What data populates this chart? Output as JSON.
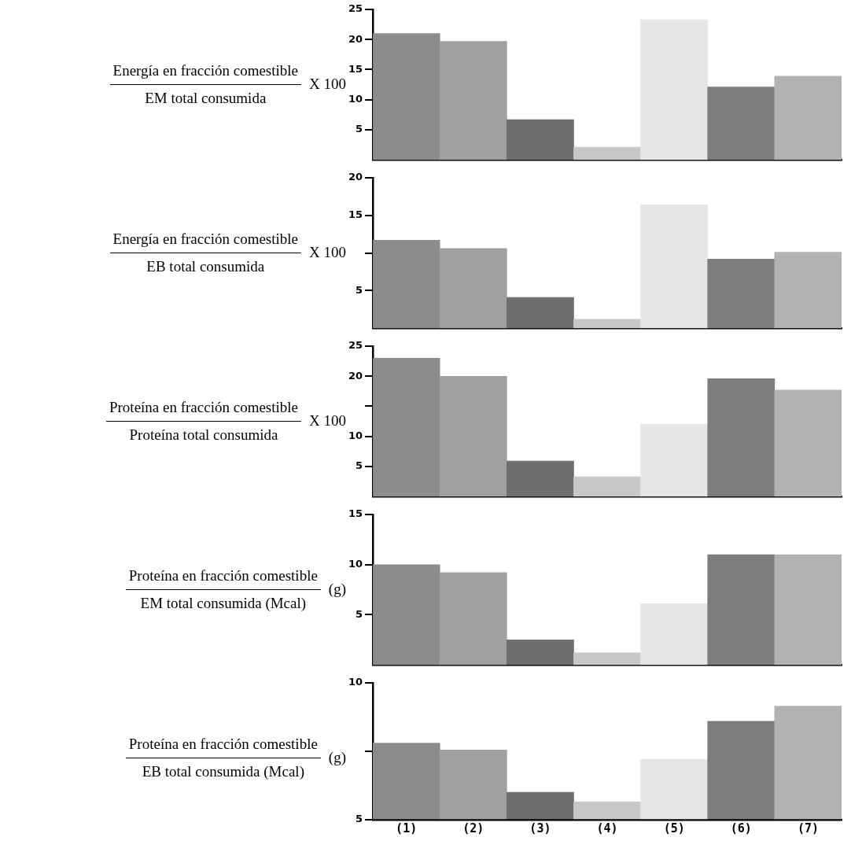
{
  "chart_data": [
    {
      "type": "bar",
      "ylabel": "Energía en fracción comestible\nEM total consumida\nX 100",
      "categories": [
        null,
        null,
        null,
        null,
        null,
        null,
        null
      ],
      "values": [
        21.0,
        19.7,
        6.7,
        2.1,
        23.3,
        12.1,
        13.9
      ],
      "colors": [
        "#8c8c8c",
        "#a0a0a0",
        "#6e6e6e",
        "#c8c8c8",
        "#e6e6e6",
        "#7d7d7d",
        "#b2b2b2"
      ],
      "ylim": [
        0,
        25
      ],
      "yticks": [
        5,
        10,
        15,
        20,
        25
      ],
      "tick_labels": "y",
      "grid": false
    },
    {
      "type": "bar",
      "ylabel": "Energía en fracción comestible\nEB total consumida\nX 100",
      "categories": [
        null,
        null,
        null,
        null,
        null,
        null,
        null
      ],
      "values": [
        11.7,
        10.6,
        4.1,
        1.2,
        16.4,
        9.2,
        10.1
      ],
      "colors": [
        "#8c8c8c",
        "#a0a0a0",
        "#6e6e6e",
        "#c8c8c8",
        "#e6e6e6",
        "#7d7d7d",
        "#b2b2b2"
      ],
      "ylim": [
        0,
        20
      ],
      "yticks": [
        5,
        {
          "value": 10,
          "label": null
        },
        15,
        20
      ],
      "tick_labels": "y",
      "grid": false
    },
    {
      "type": "bar",
      "ylabel": "Proteína en fracción comestible\nProteína total consumida\nX 100",
      "categories": [
        null,
        null,
        null,
        null,
        null,
        null,
        null
      ],
      "values": [
        23.0,
        20.0,
        5.9,
        3.3,
        12.0,
        19.6,
        17.7
      ],
      "colors": [
        "#8c8c8c",
        "#a0a0a0",
        "#6e6e6e",
        "#c8c8c8",
        "#e6e6e6",
        "#7d7d7d",
        "#b2b2b2"
      ],
      "ylim": [
        0,
        25
      ],
      "yticks": [
        5,
        10,
        {
          "value": 15,
          "label": null
        },
        20,
        25
      ],
      "tick_labels": "y",
      "grid": false
    },
    {
      "type": "bar",
      "ylabel": "Proteína en fracción comestible\nEM total consumida (Mcal)\n(g)",
      "categories": [
        null,
        null,
        null,
        null,
        null,
        null,
        null
      ],
      "values": [
        10.0,
        9.2,
        2.5,
        1.2,
        6.1,
        11.0,
        11.0
      ],
      "colors": [
        "#8c8c8c",
        "#a0a0a0",
        "#6e6e6e",
        "#c8c8c8",
        "#e6e6e6",
        "#7d7d7d",
        "#b2b2b2"
      ],
      "ylim": [
        0,
        15
      ],
      "yticks": [
        5,
        10,
        15
      ],
      "tick_labels": "y",
      "grid": false
    },
    {
      "type": "bar",
      "ylabel": "Proteína en fracción comestible\nEB total consumida (Mcal)\n(g)",
      "categories": [
        "(1)",
        "(2)",
        "(3)",
        "(4)",
        "(5)",
        "(6)",
        "(7)"
      ],
      "values": [
        7.8,
        7.55,
        6.0,
        5.65,
        7.2,
        8.6,
        9.15
      ],
      "colors": [
        "#8c8c8c",
        "#a0a0a0",
        "#6e6e6e",
        "#c8c8c8",
        "#e6e6e6",
        "#7d7d7d",
        "#b2b2b2"
      ],
      "ylim": [
        5,
        10
      ],
      "yticks": [
        5,
        {
          "value": 7.5,
          "label": null
        },
        10
      ],
      "grid": false
    }
  ]
}
